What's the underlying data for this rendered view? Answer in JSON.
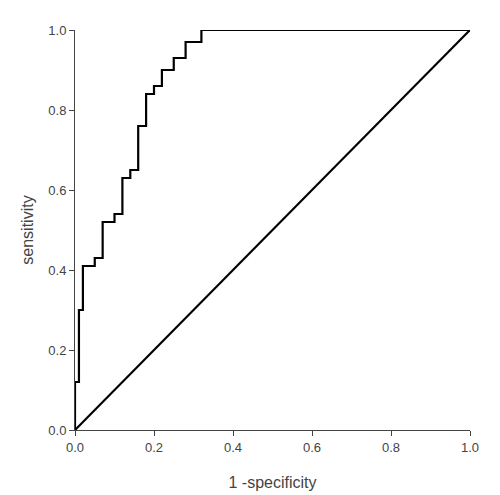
{
  "chart_data": {
    "type": "line",
    "xlabel": "1 -specificity",
    "ylabel": "sensitivity",
    "xlim": [
      0.0,
      1.0
    ],
    "ylim": [
      0.0,
      1.0
    ],
    "xticks": [
      {
        "value": 0.0,
        "label": "0.0"
      },
      0.2,
      0.4,
      0.6,
      0.8,
      {
        "value": 1.0,
        "label": "1.0"
      }
    ],
    "yticks": [
      {
        "value": 0.0,
        "label": "0.0"
      },
      0.2,
      0.4,
      0.6,
      0.8,
      {
        "value": 1.0,
        "label": "1.0"
      }
    ],
    "grid": false,
    "series": [
      {
        "color": "#000000",
        "x": [
          0.0,
          1.0
        ],
        "values": [
          0.0,
          1.0
        ]
      },
      {
        "color": "#000000",
        "x": [
          0.0,
          0.0,
          0.01,
          0.01,
          0.02,
          0.02,
          0.05,
          0.05,
          0.07,
          0.07,
          0.1,
          0.1,
          0.12,
          0.12,
          0.14,
          0.14,
          0.16,
          0.16,
          0.18,
          0.18,
          0.2,
          0.2,
          0.22,
          0.22,
          0.25,
          0.25,
          0.28,
          0.28,
          0.32,
          0.32,
          0.4,
          0.4,
          0.58,
          0.58,
          1.0
        ],
        "values": [
          0.0,
          0.12,
          0.12,
          0.3,
          0.3,
          0.41,
          0.41,
          0.43,
          0.43,
          0.52,
          0.52,
          0.54,
          0.54,
          0.63,
          0.63,
          0.65,
          0.65,
          0.76,
          0.76,
          0.84,
          0.84,
          0.86,
          0.86,
          0.9,
          0.9,
          0.93,
          0.93,
          0.97,
          0.97,
          1.0,
          1.0,
          1.0,
          1.0,
          1.0,
          1.0
        ]
      }
    ]
  }
}
